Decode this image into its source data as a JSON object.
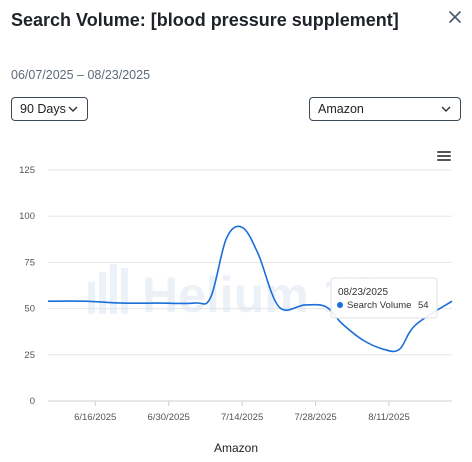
{
  "dialog": {
    "title": "Search Volume: [blood pressure supplement]",
    "date_range": "06/07/2025 – 08/23/2025"
  },
  "controls": {
    "period_select": "90 Days",
    "market_select": "Amazon"
  },
  "icons": {
    "close": "close-icon",
    "menu": "hamburger-menu-icon",
    "chevron": "chevron-down-icon"
  },
  "watermark": "Helium 10",
  "tooltip": {
    "date": "08/23/2025",
    "series": "Search Volume",
    "value": "54"
  },
  "colors": {
    "line": "#1a6fd8",
    "grid": "#e6e6e6"
  },
  "chart_data": {
    "type": "line",
    "xlabel": "Amazon",
    "ylabel": "",
    "ylim": [
      0,
      125
    ],
    "yticks": [
      0,
      25,
      50,
      75,
      100,
      125
    ],
    "xticks": [
      "6/16/2025",
      "6/30/2025",
      "7/14/2025",
      "7/28/2025",
      "8/11/2025"
    ],
    "xrange": [
      "06/07/2025",
      "08/23/2025"
    ],
    "grid": "horizontal",
    "series": [
      {
        "name": "Search Volume",
        "points": [
          [
            "06/07/2025",
            54
          ],
          [
            "06/14/2025",
            54
          ],
          [
            "06/21/2025",
            53
          ],
          [
            "06/28/2025",
            53
          ],
          [
            "07/05/2025",
            53
          ],
          [
            "07/08/2025",
            56
          ],
          [
            "07/11/2025",
            88
          ],
          [
            "07/14/2025",
            94
          ],
          [
            "07/17/2025",
            80
          ],
          [
            "07/21/2025",
            51
          ],
          [
            "07/26/2025",
            52
          ],
          [
            "07/30/2025",
            51
          ],
          [
            "08/02/2025",
            42
          ],
          [
            "08/06/2025",
            33
          ],
          [
            "08/10/2025",
            28
          ],
          [
            "08/13/2025",
            28
          ],
          [
            "08/16/2025",
            41
          ],
          [
            "08/23/2025",
            54
          ]
        ]
      }
    ]
  }
}
